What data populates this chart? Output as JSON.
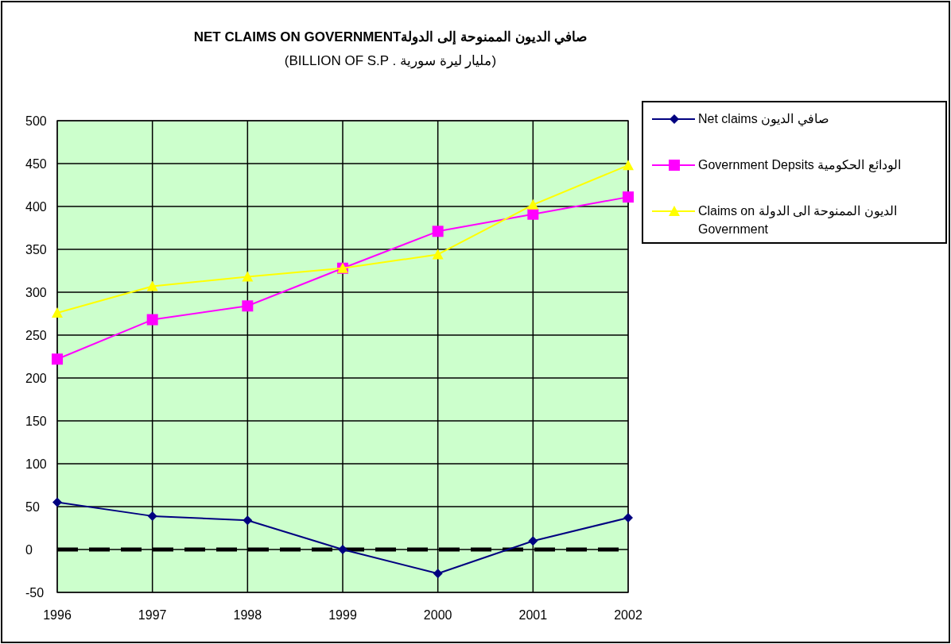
{
  "chart_data": {
    "type": "line",
    "title": "NET CLAIMS ON GOVERNMENTصافي الديون الممنوحة إلى الدولة",
    "subtitle": "(BILLION OF S.P  .  مليار ليرة سورية)",
    "categories": [
      "1996",
      "1997",
      "1998",
      "1999",
      "2000",
      "2001",
      "2002"
    ],
    "series": [
      {
        "name": "Net claims صافي الديون",
        "color": "#000080",
        "marker": "diamond",
        "values": [
          55,
          39,
          34,
          0,
          -28,
          10,
          37
        ]
      },
      {
        "name": "Government Depsits الودائع الحكومية",
        "color": "#ff00ff",
        "marker": "square",
        "values": [
          222,
          268,
          284,
          328,
          371,
          391,
          411
        ]
      },
      {
        "name": "Claims on الديون الممنوحة الى الدولة Government",
        "color": "#ffff00",
        "marker": "triangle",
        "values": [
          276,
          307,
          318,
          328,
          344,
          402,
          448
        ]
      }
    ],
    "ylim": [
      -50,
      500
    ],
    "yticks": [
      -50,
      0,
      50,
      100,
      150,
      200,
      250,
      300,
      350,
      400,
      450,
      500
    ],
    "ref_lines": [
      {
        "axis": "y",
        "value": 0,
        "color": "#000000",
        "line_style": "dashed"
      }
    ],
    "grid": true,
    "legend": "top right"
  }
}
